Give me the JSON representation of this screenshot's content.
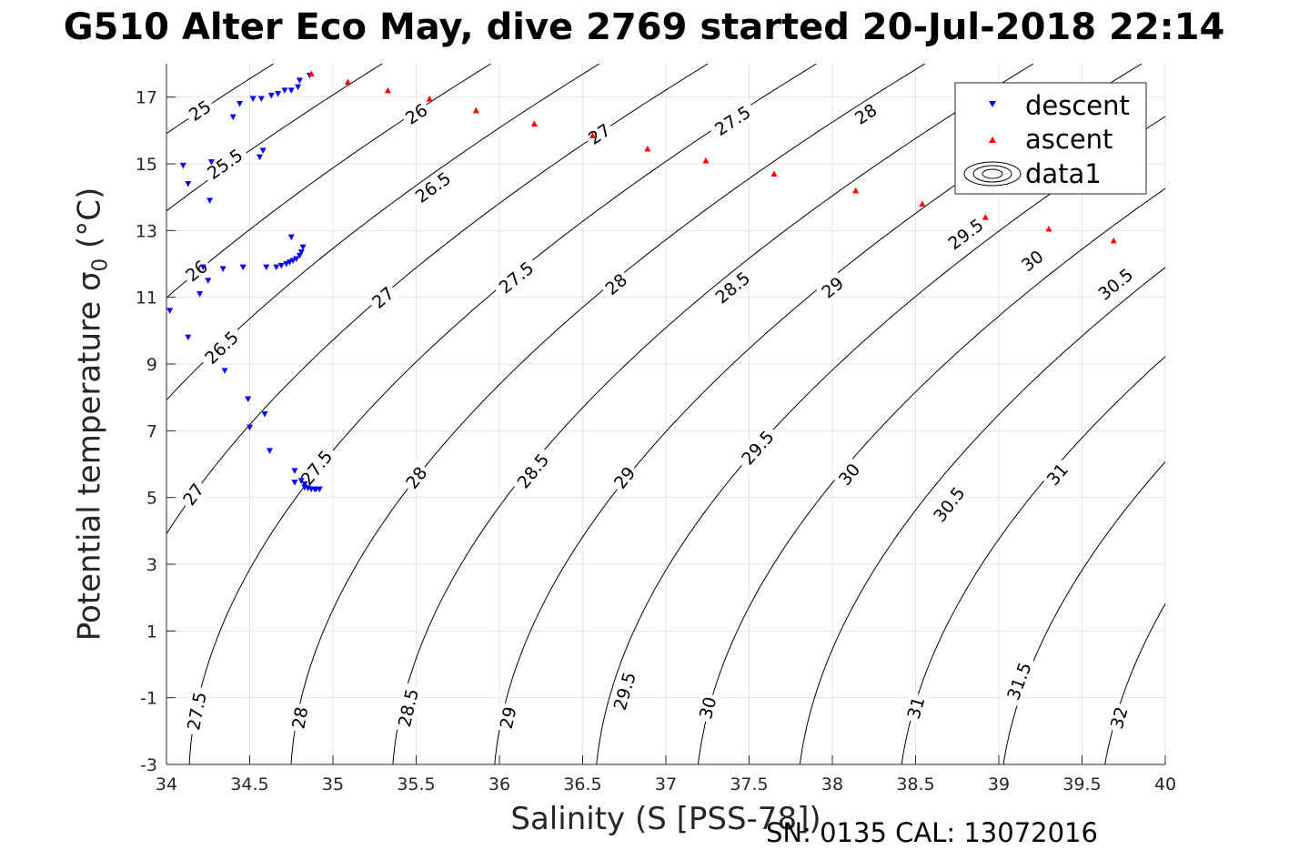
{
  "figure": {
    "title": "G510 Alter Eco May, dive 2769 started 20-Jul-2018 22:14",
    "footer": "SN: 0135  CAL: 13072016"
  },
  "chart_data": {
    "type": "scatter",
    "title": "G510 Alter Eco May, dive 2769 started 20-Jul-2018 22:14",
    "xlabel": "Salinity (S [PSS-78])",
    "ylabel_main": "Potential temperature ",
    "ylabel_sigma": "σ",
    "ylabel_sub": "0",
    "ylabel_unit": " (°C)",
    "xlim": [
      34,
      40
    ],
    "ylim": [
      -3,
      18
    ],
    "x_ticks": [
      34,
      34.5,
      35,
      35.5,
      36,
      36.5,
      37,
      37.5,
      38,
      38.5,
      39,
      39.5,
      40
    ],
    "x_tick_labels": [
      "34",
      "34.5",
      "35",
      "35.5",
      "36",
      "36.5",
      "37",
      "37.5",
      "38",
      "38.5",
      "39",
      "39.5",
      "40"
    ],
    "y_ticks": [
      -3,
      -1,
      1,
      3,
      5,
      7,
      9,
      11,
      13,
      15,
      17
    ],
    "y_tick_labels": [
      "-3",
      "-1",
      "1",
      "3",
      "5",
      "7",
      "9",
      "11",
      "13",
      "15",
      "17"
    ],
    "grid": true,
    "legend_position": "top-right",
    "legend": [
      {
        "label": "descent",
        "marker": "triangle-down",
        "color": "#0000ff"
      },
      {
        "label": "ascent",
        "marker": "triangle-up",
        "color": "#ff0000"
      },
      {
        "label": "data1",
        "marker": "contour-ellipses",
        "color": "#000000"
      }
    ],
    "contours": {
      "label": "data1",
      "levels": [
        25,
        25.5,
        26,
        26.5,
        27,
        27.5,
        28,
        28.5,
        29,
        29.5,
        30,
        30.5,
        31,
        31.5,
        32
      ],
      "color": "#000000",
      "labels": [
        {
          "text": "25",
          "s": 34.2,
          "t": 16.6
        },
        {
          "text": "25.5",
          "s": 34.35,
          "t": 15.0
        },
        {
          "text": "26",
          "s": 35.5,
          "t": 16.5
        },
        {
          "text": "26",
          "s": 34.18,
          "t": 11.8
        },
        {
          "text": "26.5",
          "s": 35.6,
          "t": 14.3
        },
        {
          "text": "26.5",
          "s": 34.33,
          "t": 9.5
        },
        {
          "text": "27",
          "s": 36.6,
          "t": 15.9
        },
        {
          "text": "27",
          "s": 35.3,
          "t": 11.0
        },
        {
          "text": "27",
          "s": 34.16,
          "t": 5.1
        },
        {
          "text": "27.5",
          "s": 37.4,
          "t": 16.3
        },
        {
          "text": "27.5",
          "s": 36.1,
          "t": 11.6
        },
        {
          "text": "27.5",
          "s": 34.9,
          "t": 5.9
        },
        {
          "text": "27.5",
          "s": 34.18,
          "t": -1.4
        },
        {
          "text": "28",
          "s": 38.2,
          "t": 16.5
        },
        {
          "text": "28",
          "s": 36.7,
          "t": 11.4
        },
        {
          "text": "28",
          "s": 35.5,
          "t": 5.6
        },
        {
          "text": "28",
          "s": 34.8,
          "t": -1.6
        },
        {
          "text": "28.5",
          "s": 38.9,
          "t": 16.2
        },
        {
          "text": "28.5",
          "s": 37.4,
          "t": 11.3
        },
        {
          "text": "28.5",
          "s": 36.2,
          "t": 5.8
        },
        {
          "text": "28.5",
          "s": 35.45,
          "t": -1.3
        },
        {
          "text": "29",
          "s": 38.0,
          "t": 11.3
        },
        {
          "text": "29",
          "s": 36.75,
          "t": 5.6
        },
        {
          "text": "29",
          "s": 36.05,
          "t": -1.6
        },
        {
          "text": "29.5",
          "s": 38.8,
          "t": 12.9
        },
        {
          "text": "29.5",
          "s": 37.55,
          "t": 6.5
        },
        {
          "text": "29.5",
          "s": 36.75,
          "t": -0.8
        },
        {
          "text": "30",
          "s": 39.2,
          "t": 12.1
        },
        {
          "text": "30",
          "s": 38.1,
          "t": 5.7
        },
        {
          "text": "30",
          "s": 37.25,
          "t": -1.3
        },
        {
          "text": "30.5",
          "s": 39.7,
          "t": 11.4
        },
        {
          "text": "30.5",
          "s": 38.7,
          "t": 4.8
        },
        {
          "text": "31",
          "s": 39.35,
          "t": 5.7
        },
        {
          "text": "31",
          "s": 38.5,
          "t": -1.3
        },
        {
          "text": "31.5",
          "s": 39.12,
          "t": -0.5
        },
        {
          "text": "32",
          "s": 39.72,
          "t": -1.6
        }
      ]
    },
    "series": [
      {
        "name": "descent",
        "marker": "triangle-down",
        "color": "#0000ff",
        "points": [
          [
            34.02,
            10.6
          ],
          [
            34.1,
            14.95
          ],
          [
            34.13,
            14.4
          ],
          [
            34.13,
            9.8
          ],
          [
            34.2,
            11.1
          ],
          [
            34.22,
            11.9
          ],
          [
            34.25,
            11.5
          ],
          [
            34.26,
            13.9
          ],
          [
            34.27,
            15.05
          ],
          [
            34.34,
            11.85
          ],
          [
            34.35,
            8.8
          ],
          [
            34.4,
            16.4
          ],
          [
            34.44,
            16.8
          ],
          [
            34.46,
            11.9
          ],
          [
            34.49,
            7.95
          ],
          [
            34.5,
            7.1
          ],
          [
            34.52,
            16.95
          ],
          [
            34.56,
            15.2
          ],
          [
            34.57,
            16.95
          ],
          [
            34.58,
            15.4
          ],
          [
            34.59,
            7.5
          ],
          [
            34.6,
            11.9
          ],
          [
            34.62,
            6.4
          ],
          [
            34.63,
            17.05
          ],
          [
            34.66,
            11.9
          ],
          [
            34.67,
            17.1
          ],
          [
            34.69,
            11.95
          ],
          [
            34.71,
            17.2
          ],
          [
            34.72,
            12.0
          ],
          [
            34.74,
            12.05
          ],
          [
            34.75,
            12.8
          ],
          [
            34.75,
            17.2
          ],
          [
            34.76,
            12.1
          ],
          [
            34.77,
            5.8
          ],
          [
            34.77,
            5.45
          ],
          [
            34.78,
            12.15
          ],
          [
            34.79,
            17.3
          ],
          [
            34.8,
            12.25
          ],
          [
            34.8,
            17.5
          ],
          [
            34.81,
            12.35
          ],
          [
            34.81,
            5.5
          ],
          [
            34.82,
            12.5
          ],
          [
            34.83,
            5.4
          ],
          [
            34.83,
            5.3
          ],
          [
            34.85,
            5.28
          ],
          [
            34.86,
            17.65
          ],
          [
            34.87,
            5.25
          ],
          [
            34.89,
            5.25
          ],
          [
            34.9,
            5.25
          ],
          [
            34.92,
            5.25
          ]
        ]
      },
      {
        "name": "ascent",
        "marker": "triangle-up",
        "color": "#ff0000",
        "points": [
          [
            34.87,
            17.7
          ],
          [
            35.09,
            17.45
          ],
          [
            35.33,
            17.2
          ],
          [
            35.58,
            16.95
          ],
          [
            35.86,
            16.6
          ],
          [
            36.21,
            16.2
          ],
          [
            36.56,
            15.85
          ],
          [
            36.89,
            15.45
          ],
          [
            37.24,
            15.1
          ],
          [
            37.65,
            14.7
          ],
          [
            38.14,
            14.2
          ],
          [
            38.54,
            13.8
          ],
          [
            38.92,
            13.4
          ],
          [
            39.3,
            13.05
          ],
          [
            39.69,
            12.7
          ]
        ]
      }
    ]
  }
}
